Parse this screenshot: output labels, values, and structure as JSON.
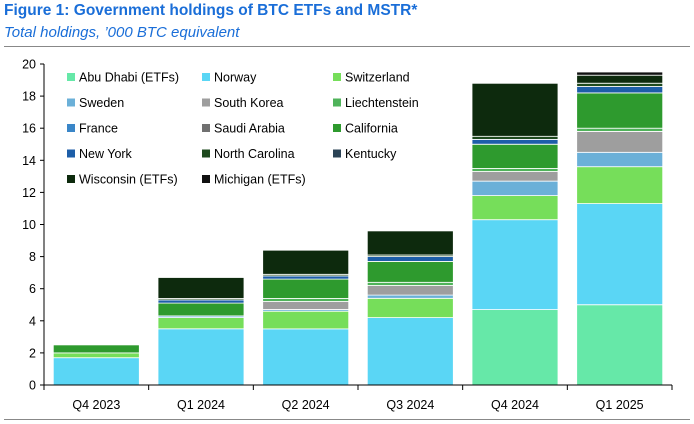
{
  "header": {
    "title": "Figure 1: Government holdings of BTC ETFs and MSTR*",
    "subtitle": "Total holdings, ’000 BTC equivalent"
  },
  "chart_data": {
    "type": "bar",
    "stacked": true,
    "title": "Figure 1: Government holdings of BTC ETFs and MSTR*",
    "subtitle": "Total holdings, ’000 BTC equivalent",
    "xlabel": "",
    "ylabel": "",
    "ylim": [
      0,
      20
    ],
    "yticks": [
      0,
      2,
      4,
      6,
      8,
      10,
      12,
      14,
      16,
      18,
      20
    ],
    "grid": false,
    "legend_position": "top-left",
    "categories": [
      "Q4 2023",
      "Q1 2024",
      "Q2 2024",
      "Q3 2024",
      "Q4 2024",
      "Q1 2025"
    ],
    "series": [
      {
        "name": "Abu Dhabi (ETFs)",
        "color": "#66e8a8",
        "values": [
          0,
          0,
          0,
          0,
          4.7,
          5.0
        ]
      },
      {
        "name": "Norway",
        "color": "#5ad6f5",
        "values": [
          1.7,
          3.5,
          3.5,
          4.2,
          5.6,
          6.3
        ]
      },
      {
        "name": "Switzerland",
        "color": "#76de5a",
        "values": [
          0.3,
          0.7,
          1.1,
          1.2,
          1.5,
          2.3
        ]
      },
      {
        "name": "Sweden",
        "color": "#6bb0d8",
        "values": [
          0,
          0.1,
          0.1,
          0.2,
          0.9,
          0.9
        ]
      },
      {
        "name": "South Korea",
        "color": "#9e9e9e",
        "values": [
          0,
          0,
          0.5,
          0.6,
          0.6,
          1.3
        ]
      },
      {
        "name": "Liechtenstein",
        "color": "#4fb35a",
        "values": [
          0,
          0,
          0.2,
          0.2,
          0.2,
          0.2
        ]
      },
      {
        "name": "France",
        "color": "#3a86c8",
        "values": [
          0,
          0,
          0,
          0,
          0,
          0
        ]
      },
      {
        "name": "Saudi Arabia",
        "color": "#707070",
        "values": [
          0,
          0,
          0,
          0,
          0,
          0
        ]
      },
      {
        "name": "California",
        "color": "#2e9a2e",
        "values": [
          0.5,
          0.8,
          1.2,
          1.3,
          1.5,
          2.2
        ]
      },
      {
        "name": "New York",
        "color": "#1d5ea8",
        "values": [
          0,
          0.2,
          0.2,
          0.3,
          0.3,
          0.4
        ]
      },
      {
        "name": "North Carolina",
        "color": "#1e4a1e",
        "values": [
          0,
          0.1,
          0.1,
          0.1,
          0.2,
          0.2
        ]
      },
      {
        "name": "Kentucky",
        "color": "#2b4356",
        "values": [
          0,
          0,
          0,
          0,
          0,
          0
        ]
      },
      {
        "name": "Wisconsin (ETFs)",
        "color": "#0d2a0d",
        "values": [
          0,
          1.3,
          1.5,
          1.5,
          3.3,
          0.5
        ]
      },
      {
        "name": "Michigan (ETFs)",
        "color": "#111111",
        "values": [
          0,
          0,
          0,
          0,
          0,
          0.2
        ]
      }
    ]
  }
}
